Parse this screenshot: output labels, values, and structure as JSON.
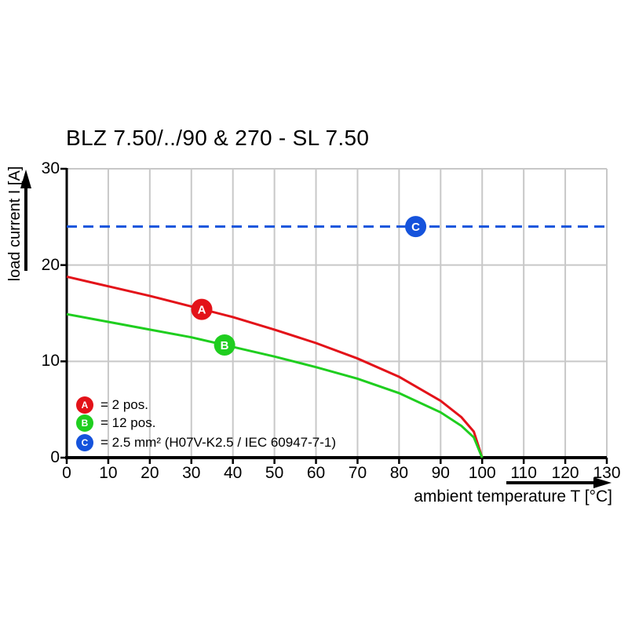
{
  "title": "BLZ 7.50/../90 & 270 - SL 7.50",
  "colors": {
    "red": "#e31219",
    "green": "#1fce1f",
    "blue": "#1553dc",
    "grid": "#c8c8c8",
    "axis": "#000000",
    "marker_letter": "#ffffff"
  },
  "chart_data": {
    "type": "line",
    "title": "BLZ 7.50/../90 & 270 - SL 7.50",
    "xlabel": "ambient temperature T [°C]",
    "ylabel": "load current I [A]",
    "xlim": [
      0,
      130
    ],
    "ylim": [
      0,
      30
    ],
    "x_ticks": [
      0,
      10,
      20,
      30,
      40,
      50,
      60,
      70,
      80,
      90,
      100,
      110,
      120,
      130
    ],
    "y_ticks": [
      0,
      10,
      20,
      30
    ],
    "grid": true,
    "legend_position": "lower-left-inside",
    "series": [
      {
        "name": "A",
        "legend_label": "= 2 pos.",
        "color": "#e31219",
        "style": "solid",
        "x": [
          0,
          10,
          20,
          30,
          40,
          50,
          60,
          70,
          80,
          90,
          95,
          98,
          100
        ],
        "y": [
          18.8,
          17.8,
          16.8,
          15.7,
          14.6,
          13.3,
          11.9,
          10.3,
          8.4,
          5.9,
          4.2,
          2.7,
          0
        ],
        "marker": {
          "letter": "A",
          "x": 32.5,
          "y": 15.4
        }
      },
      {
        "name": "B",
        "legend_label": "= 12 pos.",
        "color": "#1fce1f",
        "style": "solid",
        "x": [
          0,
          10,
          20,
          30,
          40,
          50,
          60,
          70,
          80,
          90,
          95,
          98,
          100
        ],
        "y": [
          14.9,
          14.1,
          13.3,
          12.5,
          11.5,
          10.5,
          9.4,
          8.2,
          6.7,
          4.7,
          3.3,
          2.1,
          0
        ],
        "marker": {
          "letter": "B",
          "x": 38,
          "y": 11.7
        }
      },
      {
        "name": "C",
        "legend_label": "= 2.5 mm² (H07V-K2.5 / IEC 60947-7-1)",
        "color": "#1553dc",
        "style": "dashed",
        "x": [
          0,
          130
        ],
        "y": [
          24,
          24
        ],
        "marker": {
          "letter": "C",
          "x": 84,
          "y": 24
        }
      }
    ]
  },
  "legend": {
    "items": [
      {
        "letter": "A",
        "text": "= 2 pos.",
        "color": "#e31219"
      },
      {
        "letter": "B",
        "text": "= 12 pos.",
        "color": "#1fce1f"
      },
      {
        "letter": "C",
        "text": "= 2.5 mm² (H07V-K2.5 / IEC 60947-7-1)",
        "color": "#1553dc"
      }
    ]
  }
}
